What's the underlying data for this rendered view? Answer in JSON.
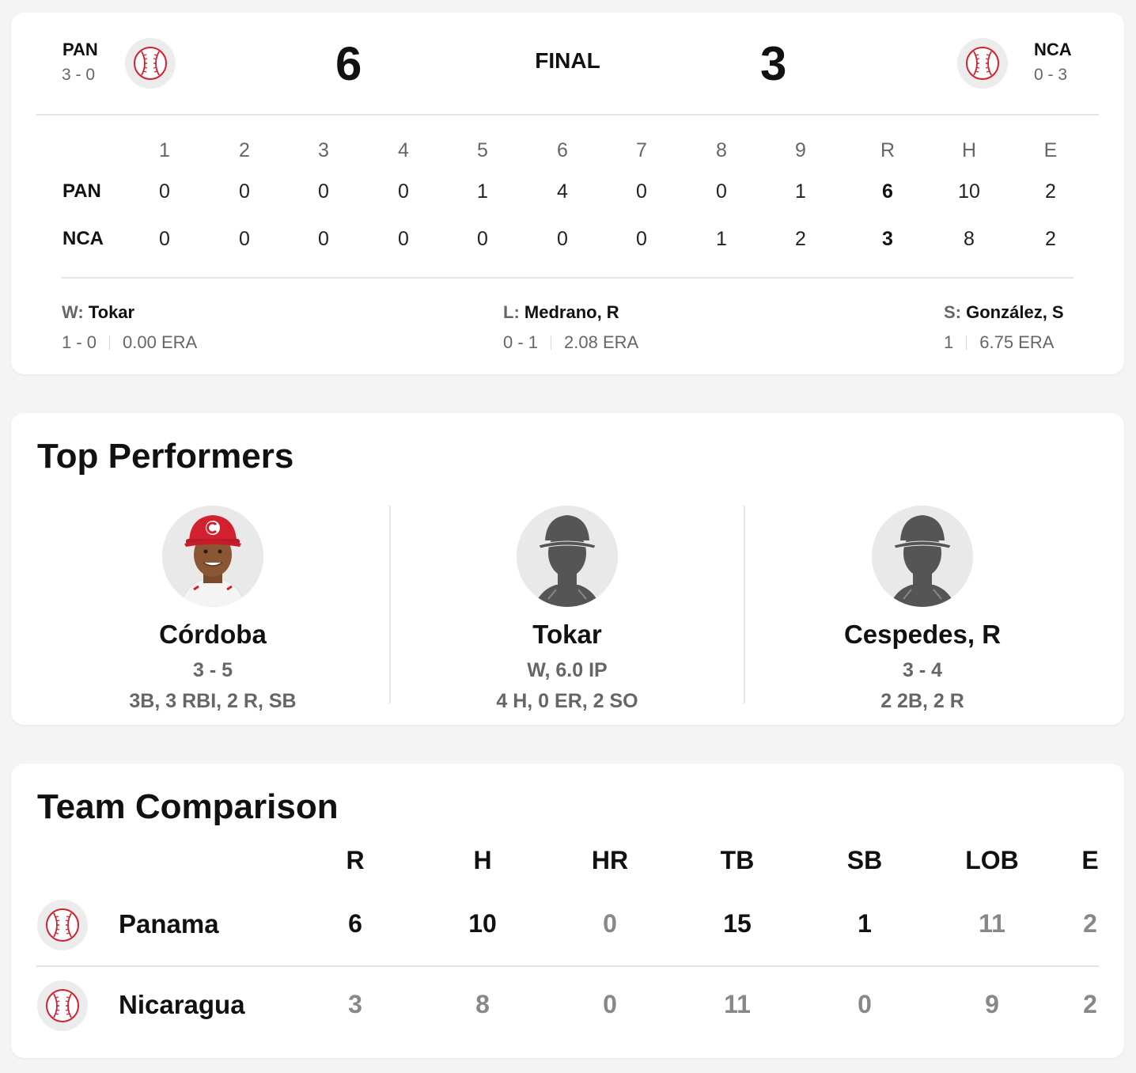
{
  "game": {
    "status": "FINAL",
    "away": {
      "abbr": "PAN",
      "record": "3 - 0",
      "score": "6",
      "logo_icon": "baseball-icon"
    },
    "home": {
      "abbr": "NCA",
      "record": "0 - 3",
      "score": "3",
      "logo_icon": "baseball-icon"
    }
  },
  "linescore": {
    "headers": [
      "1",
      "2",
      "3",
      "4",
      "5",
      "6",
      "7",
      "8",
      "9",
      "R",
      "H",
      "E"
    ],
    "rows": [
      {
        "team": "PAN",
        "cells": [
          "0",
          "0",
          "0",
          "0",
          "1",
          "4",
          "0",
          "0",
          "1",
          "6",
          "10",
          "2"
        ]
      },
      {
        "team": "NCA",
        "cells": [
          "0",
          "0",
          "0",
          "0",
          "0",
          "0",
          "0",
          "1",
          "2",
          "3",
          "8",
          "2"
        ]
      }
    ]
  },
  "pitchers": [
    {
      "label": "W:",
      "name": "Tokar",
      "record": "1 - 0",
      "era": "0.00 ERA"
    },
    {
      "label": "L:",
      "name": "Medrano, R",
      "record": "0 - 1",
      "era": "2.08 ERA"
    },
    {
      "label": "S:",
      "name": "González, S",
      "record": "1",
      "era": "6.75 ERA"
    }
  ],
  "top_performers": {
    "title": "Top Performers",
    "players": [
      {
        "name": "Córdoba",
        "line1": "3 - 5",
        "line2": "3B, 3 RBI, 2 R, SB",
        "avatar": "player-photo"
      },
      {
        "name": "Tokar",
        "line1": "W, 6.0 IP",
        "line2": "4 H, 0 ER, 2 SO",
        "avatar": "silhouette-icon"
      },
      {
        "name": "Cespedes, R",
        "line1": "3 - 4",
        "line2": "2 2B, 2 R",
        "avatar": "silhouette-icon"
      }
    ]
  },
  "team_comparison": {
    "title": "Team Comparison",
    "headers": [
      "R",
      "H",
      "HR",
      "TB",
      "SB",
      "LOB",
      "E"
    ],
    "rows": [
      {
        "team": "Panama",
        "values": [
          "6",
          "10",
          "0",
          "15",
          "1",
          "11",
          "2"
        ],
        "bold": [
          true,
          true,
          false,
          true,
          true,
          false,
          false
        ]
      },
      {
        "team": "Nicaragua",
        "values": [
          "3",
          "8",
          "0",
          "11",
          "0",
          "9",
          "2"
        ],
        "bold": [
          false,
          false,
          false,
          false,
          false,
          false,
          false
        ]
      }
    ]
  },
  "colors": {
    "accent_red": "#d3202f",
    "muted": "#666666",
    "dim": "#888888"
  }
}
